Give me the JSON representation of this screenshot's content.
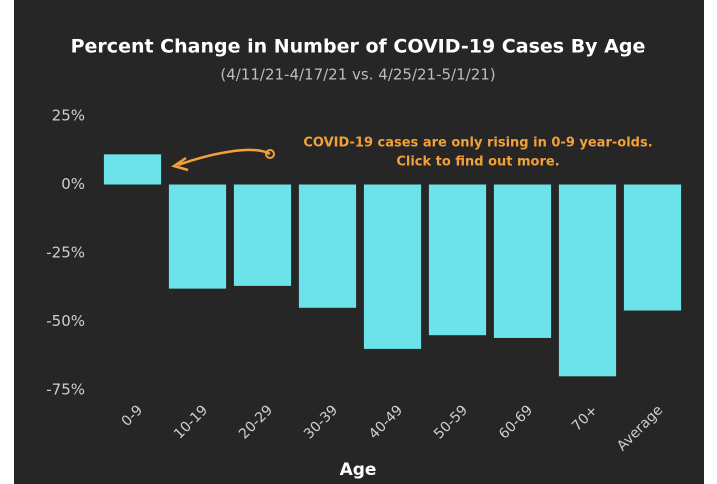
{
  "chart_data": {
    "type": "bar",
    "title": "Percent Change in Number of COVID-19 Cases By Age",
    "subtitle": "(4/11/21-4/17/21 vs. 4/25/21-5/1/21)",
    "x_label": "Age",
    "annotation": [
      "COVID-19 cases are only rising in 0-9 year-olds.",
      "Click to find out more."
    ],
    "categories": [
      "0-9",
      "10-19",
      "20-29",
      "30-39",
      "40-49",
      "50-59",
      "60-69",
      "70+",
      "Average"
    ],
    "values": [
      11,
      -38,
      -37,
      -45,
      -60,
      -55,
      -56,
      -70,
      -46
    ],
    "color": "#6ce3e8",
    "ylim": [
      -75,
      25
    ],
    "yticks": [
      {
        "value": 25,
        "label": "25%"
      },
      {
        "value": 0,
        "label": "0%"
      },
      {
        "value": -25,
        "label": "-25%"
      },
      {
        "value": -50,
        "label": "-50%"
      },
      {
        "value": -75,
        "label": "-75%"
      }
    ],
    "grid": false
  }
}
